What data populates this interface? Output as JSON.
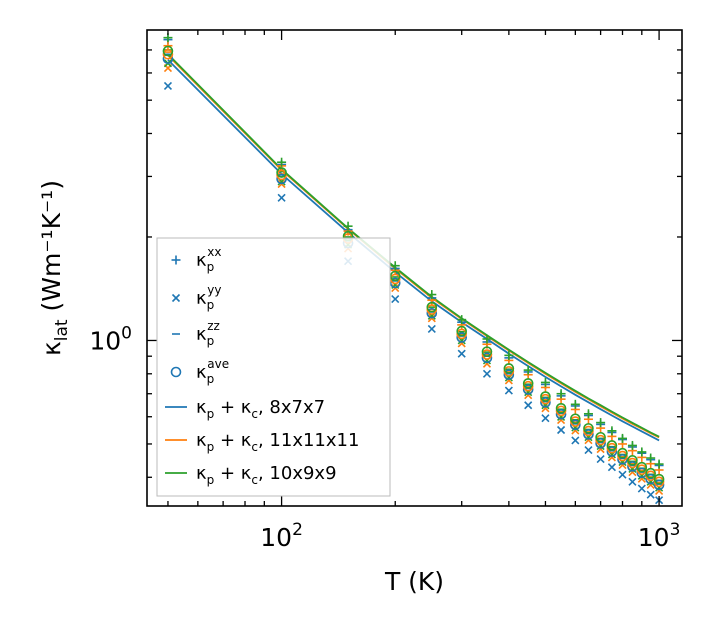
{
  "chart_data": {
    "type": "scatter",
    "xscale": "log",
    "yscale": "log",
    "xlim": [
      44,
      1150
    ],
    "ylim": [
      0.33,
      8.0
    ],
    "xlabel": "T (K)",
    "ylabel_main": "κ",
    "ylabel_sub": "lat",
    "ylabel_unit": "(Wm⁻¹K⁻¹)",
    "x_ticks": [
      {
        "value": 100,
        "base": "10",
        "exp": "2"
      },
      {
        "value": 1000,
        "base": "10",
        "exp": "3"
      }
    ],
    "y_ticks": [
      {
        "value": 1.0,
        "base": "10",
        "exp": "0"
      }
    ],
    "x": [
      50,
      100,
      150,
      200,
      250,
      300,
      350,
      400,
      450,
      500,
      550,
      600,
      650,
      700,
      750,
      800,
      850,
      900,
      950,
      1000
    ],
    "scatter_series": [
      {
        "name": "κp^xx",
        "symbol": "+",
        "mesh_values": [
          [
            7.5,
            3.25,
            2.1,
            1.62,
            1.33,
            1.13,
            0.99,
            0.89,
            0.81,
            0.745,
            0.69,
            0.645,
            0.605,
            0.57,
            0.54,
            0.515,
            0.49,
            0.47,
            0.45,
            0.433
          ],
          [
            7.2,
            3.22,
            2.08,
            1.6,
            1.31,
            1.11,
            0.975,
            0.875,
            0.795,
            0.73,
            0.675,
            0.63,
            0.59,
            0.556,
            0.526,
            0.5,
            0.478,
            0.457,
            0.438,
            0.42
          ],
          [
            7.6,
            3.3,
            2.15,
            1.65,
            1.36,
            1.15,
            1.01,
            0.905,
            0.82,
            0.755,
            0.7,
            0.652,
            0.612,
            0.577,
            0.546,
            0.519,
            0.495,
            0.474,
            0.455,
            0.437
          ]
        ]
      },
      {
        "name": "κp^yy",
        "symbol": "x",
        "mesh_values": [
          [
            5.5,
            2.6,
            1.7,
            1.32,
            1.08,
            0.915,
            0.8,
            0.715,
            0.648,
            0.594,
            0.549,
            0.512,
            0.48,
            0.452,
            0.428,
            0.407,
            0.388,
            0.371,
            0.356,
            0.343
          ],
          [
            6.2,
            2.85,
            1.85,
            1.42,
            1.16,
            0.98,
            0.855,
            0.765,
            0.693,
            0.635,
            0.587,
            0.547,
            0.513,
            0.483,
            0.457,
            0.434,
            0.414,
            0.396,
            0.38,
            0.365
          ],
          [
            6.4,
            2.9,
            1.9,
            1.45,
            1.18,
            1.0,
            0.875,
            0.78,
            0.707,
            0.648,
            0.599,
            0.558,
            0.523,
            0.493,
            0.466,
            0.443,
            0.423,
            0.404,
            0.388,
            0.373
          ]
        ]
      },
      {
        "name": "κp^zz",
        "symbol": "_",
        "mesh_values": [
          [
            6.8,
            3.0,
            1.95,
            1.49,
            1.21,
            1.03,
            0.9,
            0.8,
            0.725,
            0.664,
            0.614,
            0.572,
            0.536,
            0.505,
            0.478,
            0.454,
            0.433,
            0.414,
            0.397,
            0.382
          ],
          [
            6.9,
            3.05,
            1.98,
            1.51,
            1.23,
            1.04,
            0.91,
            0.81,
            0.733,
            0.672,
            0.621,
            0.578,
            0.542,
            0.51,
            0.483,
            0.459,
            0.438,
            0.419,
            0.401,
            0.386
          ],
          [
            7.0,
            3.1,
            2.0,
            1.53,
            1.25,
            1.06,
            0.925,
            0.825,
            0.746,
            0.683,
            0.631,
            0.588,
            0.551,
            0.519,
            0.491,
            0.466,
            0.445,
            0.425,
            0.408,
            0.392
          ]
        ]
      },
      {
        "name": "κp^ave",
        "symbol": "o",
        "mesh_values": [
          [
            6.6,
            2.95,
            1.92,
            1.47,
            1.2,
            1.02,
            0.89,
            0.795,
            0.72,
            0.66,
            0.61,
            0.568,
            0.533,
            0.502,
            0.475,
            0.451,
            0.43,
            0.412,
            0.395,
            0.38
          ],
          [
            6.8,
            3.03,
            1.98,
            1.51,
            1.23,
            1.045,
            0.91,
            0.813,
            0.736,
            0.675,
            0.624,
            0.581,
            0.545,
            0.513,
            0.486,
            0.461,
            0.44,
            0.421,
            0.404,
            0.388
          ],
          [
            6.95,
            3.08,
            2.01,
            1.54,
            1.25,
            1.065,
            0.928,
            0.829,
            0.75,
            0.687,
            0.635,
            0.592,
            0.555,
            0.523,
            0.495,
            0.47,
            0.448,
            0.428,
            0.411,
            0.395
          ]
        ]
      }
    ],
    "line_series": [
      {
        "name": "κp + κc, 8x7x7",
        "color": "#1f77b4",
        "values": [
          6.55,
          3.05,
          2.06,
          1.58,
          1.3,
          1.13,
          1.01,
          0.915,
          0.842,
          0.783,
          0.735,
          0.695,
          0.661,
          0.631,
          0.605,
          0.582,
          0.562,
          0.544,
          0.527,
          0.512
        ]
      },
      {
        "name": "κp + κc, 11x11x11",
        "color": "#ff7f0e",
        "values": [
          6.75,
          3.13,
          2.11,
          1.62,
          1.33,
          1.155,
          1.03,
          0.935,
          0.86,
          0.8,
          0.75,
          0.709,
          0.674,
          0.643,
          0.617,
          0.593,
          0.572,
          0.554,
          0.537,
          0.522
        ]
      },
      {
        "name": "κp + κc, 10x9x9",
        "color": "#2ca02c",
        "values": [
          6.8,
          3.15,
          2.12,
          1.63,
          1.34,
          1.16,
          1.035,
          0.94,
          0.865,
          0.805,
          0.755,
          0.714,
          0.678,
          0.648,
          0.621,
          0.597,
          0.576,
          0.557,
          0.54,
          0.525
        ]
      }
    ],
    "mesh_colors": [
      "#1f77b4",
      "#ff7f0e",
      "#2ca02c"
    ],
    "legend": {
      "position": "lower-left",
      "entries": [
        {
          "kind": "scatter",
          "symbol": "+",
          "base": "κ",
          "sub": "p",
          "sup": "xx",
          "text": ""
        },
        {
          "kind": "scatter",
          "symbol": "x",
          "base": "κ",
          "sub": "p",
          "sup": "yy",
          "text": ""
        },
        {
          "kind": "scatter",
          "symbol": "_",
          "base": "κ",
          "sub": "p",
          "sup": "zz",
          "text": ""
        },
        {
          "kind": "scatter",
          "symbol": "o",
          "base": "κ",
          "sub": "p",
          "sup": "ave",
          "text": ""
        },
        {
          "kind": "line",
          "color": "#1f77b4",
          "base": "κ",
          "sub": "p",
          "mid": " + ",
          "base2": "κ",
          "sub2": "c",
          "text": ", 8x7x7"
        },
        {
          "kind": "line",
          "color": "#ff7f0e",
          "base": "κ",
          "sub": "p",
          "mid": " + ",
          "base2": "κ",
          "sub2": "c",
          "text": ", 11x11x11"
        },
        {
          "kind": "line",
          "color": "#2ca02c",
          "base": "κ",
          "sub": "p",
          "mid": " + ",
          "base2": "κ",
          "sub2": "c",
          "text": ", 10x9x9"
        }
      ]
    }
  }
}
